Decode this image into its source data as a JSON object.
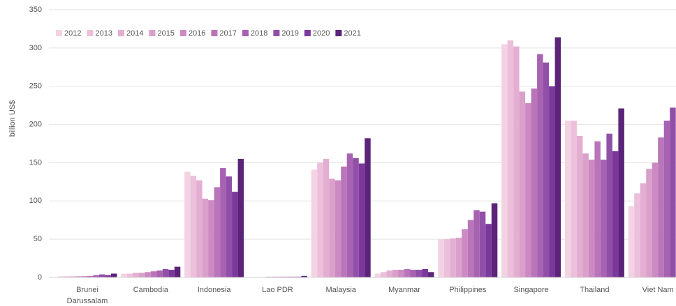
{
  "chart_data": {
    "type": "bar",
    "y_label": "billion US$",
    "categories": [
      "Brunei Darussalam",
      "Cambodia",
      "Indonesia",
      "Lao PDR",
      "Malaysia",
      "Myanmar",
      "Philippines",
      "Singapore",
      "Thailand",
      "Viet Nam"
    ],
    "series": [
      {
        "name": "2012",
        "color": "#f3d3e3",
        "values": [
          1.5,
          5,
          138,
          0.3,
          141,
          5,
          50,
          305,
          205,
          93
        ]
      },
      {
        "name": "2013",
        "color": "#ecc0da",
        "values": [
          1.5,
          5,
          133,
          0.3,
          150,
          7,
          50,
          310,
          205,
          110
        ]
      },
      {
        "name": "2014",
        "color": "#e3aed1",
        "values": [
          1.5,
          6,
          127,
          0.5,
          155,
          9,
          51,
          302,
          185,
          123
        ]
      },
      {
        "name": "2015",
        "color": "#d9a0ca",
        "values": [
          1.6,
          6,
          103,
          1,
          129,
          10,
          52,
          243,
          162,
          142
        ]
      },
      {
        "name": "2016",
        "color": "#cc89c2",
        "values": [
          1.7,
          7,
          101,
          1,
          127,
          10,
          63,
          228,
          154,
          150
        ]
      },
      {
        "name": "2017",
        "color": "#b975ba",
        "values": [
          2,
          8,
          118,
          1,
          145,
          11,
          75,
          247,
          178,
          183
        ]
      },
      {
        "name": "2018",
        "color": "#a862b2",
        "values": [
          3,
          9,
          143,
          1,
          162,
          10,
          88,
          292,
          154,
          205
        ]
      },
      {
        "name": "2019",
        "color": "#9150a8",
        "values": [
          4,
          11,
          132,
          1,
          156,
          10,
          86,
          281,
          188,
          222
        ]
      },
      {
        "name": "2020",
        "color": "#7b389b",
        "values": [
          3,
          10,
          112,
          1,
          149,
          11,
          70,
          250,
          165,
          null
        ]
      },
      {
        "name": "2021",
        "color": "#5c2479",
        "values": [
          5,
          14,
          155,
          2,
          182,
          7,
          97,
          314,
          221,
          null
        ]
      }
    ],
    "ylim": [
      0,
      350
    ],
    "yticks": [
      0,
      50,
      100,
      150,
      200,
      250,
      300,
      350
    ],
    "grid": true
  }
}
